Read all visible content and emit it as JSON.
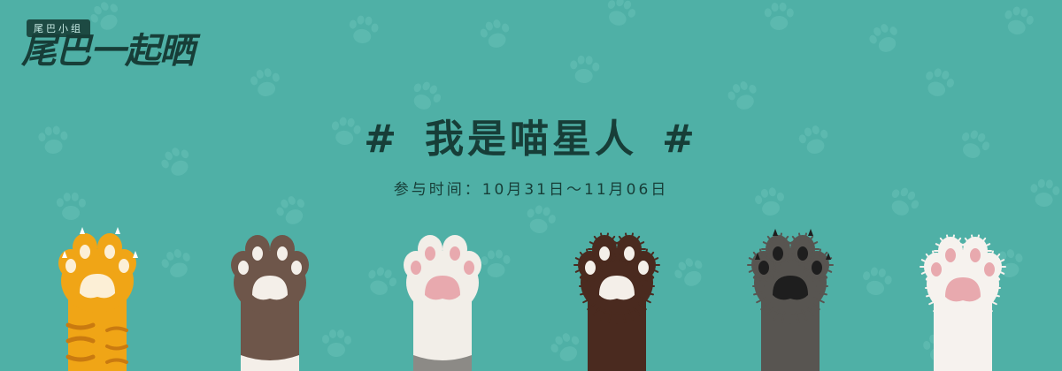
{
  "logo": {
    "tag": "尾巴小组",
    "title": "尾巴一起晒"
  },
  "headline": {
    "hash_left": "#",
    "title": "我是喵星人",
    "hash_right": "#"
  },
  "subtitle": "参与时间：10月31日～11月06日",
  "colors": {
    "background": "#4fb0a6",
    "text_dark": "#173e38",
    "bg_paw": "#5fbbb1"
  },
  "paws": [
    {
      "name": "orange-tabby-paw",
      "arm": "#f0a516",
      "pad": "#fcefd6",
      "stripes": "#c97a10",
      "cuff": ""
    },
    {
      "name": "brown-white-paw",
      "arm": "#6e564a",
      "pad": "#f4efe9",
      "stripes": "",
      "cuff": "#f4efe9"
    },
    {
      "name": "white-pink-paw",
      "arm": "#f2eee8",
      "pad": "#e8a9ae",
      "stripes": "",
      "cuff": "#8c8a86"
    },
    {
      "name": "dark-brown-paw",
      "arm": "#4a2a1f",
      "pad": "#f4efe9",
      "stripes": "",
      "cuff": ""
    },
    {
      "name": "gray-black-paw",
      "arm": "#585551",
      "pad": "#1e1e1e",
      "stripes": "",
      "cuff": ""
    },
    {
      "name": "white-fluffy-paw",
      "arm": "#f6f2ee",
      "pad": "#e8a9ae",
      "stripes": "",
      "cuff": ""
    }
  ]
}
